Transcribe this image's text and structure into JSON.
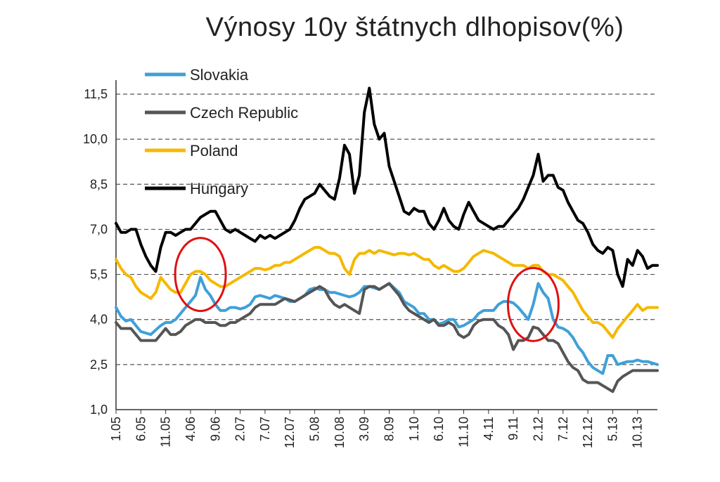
{
  "title": "Výnosy 10y štátnych dlhopisov(%)",
  "chart_data": {
    "type": "line",
    "title": "Výnosy 10y štátnych dlhopisov(%)",
    "ylim": [
      1.0,
      11.5
    ],
    "yticks": [
      "1,0",
      "2,5",
      "4,0",
      "5,5",
      "7,0",
      "8,5",
      "10,0",
      "11,5"
    ],
    "ytick_values": [
      1.0,
      2.5,
      4.0,
      5.5,
      7.0,
      8.5,
      10.0,
      11.5
    ],
    "grid": true,
    "legend": "top-left",
    "x_start": "1.05",
    "x_step_months": 1,
    "xticks": [
      {
        "label": "1.05",
        "index": 0
      },
      {
        "label": "6.05",
        "index": 5
      },
      {
        "label": "11.05",
        "index": 10
      },
      {
        "label": "4.06",
        "index": 15
      },
      {
        "label": "9.06",
        "index": 20
      },
      {
        "label": "2.07",
        "index": 25
      },
      {
        "label": "7.07",
        "index": 30
      },
      {
        "label": "12.07",
        "index": 35
      },
      {
        "label": "5.08",
        "index": 40
      },
      {
        "label": "10.08",
        "index": 45
      },
      {
        "label": "3.09",
        "index": 50
      },
      {
        "label": "8.09",
        "index": 55
      },
      {
        "label": "1.10",
        "index": 60
      },
      {
        "label": "6.10",
        "index": 65
      },
      {
        "label": "11.10",
        "index": 70
      },
      {
        "label": "4.11",
        "index": 75
      },
      {
        "label": "9.11",
        "index": 80
      },
      {
        "label": "2.12",
        "index": 85
      },
      {
        "label": "7.12",
        "index": 90
      },
      {
        "label": "12.12",
        "index": 95
      },
      {
        "label": "5.13",
        "index": 100
      },
      {
        "label": "10.13",
        "index": 105
      }
    ],
    "x_count": 110,
    "series": [
      {
        "name": "Slovakia",
        "color": "#3fa0d8",
        "values": [
          4.4,
          4.1,
          3.95,
          4.0,
          3.8,
          3.6,
          3.55,
          3.5,
          3.65,
          3.8,
          3.9,
          3.9,
          4.0,
          4.2,
          4.4,
          4.6,
          4.8,
          5.4,
          5.0,
          4.8,
          4.5,
          4.3,
          4.3,
          4.4,
          4.4,
          4.35,
          4.4,
          4.5,
          4.75,
          4.8,
          4.75,
          4.7,
          4.8,
          4.75,
          4.7,
          4.6,
          4.6,
          4.7,
          4.8,
          5.0,
          5.05,
          5.0,
          5.0,
          4.9,
          4.9,
          4.85,
          4.8,
          4.75,
          4.8,
          4.9,
          5.1,
          5.1,
          5.05,
          5.0,
          5.1,
          5.2,
          5.05,
          4.9,
          4.6,
          4.5,
          4.4,
          4.2,
          4.2,
          4.0,
          4.0,
          3.85,
          3.9,
          4.0,
          4.0,
          3.75,
          3.8,
          3.9,
          4.0,
          4.2,
          4.3,
          4.3,
          4.3,
          4.5,
          4.6,
          4.6,
          4.55,
          4.4,
          4.2,
          4.0,
          4.5,
          5.2,
          4.9,
          4.7,
          4.0,
          3.75,
          3.7,
          3.6,
          3.4,
          3.1,
          2.9,
          2.6,
          2.4,
          2.3,
          2.2,
          2.8,
          2.8,
          2.5,
          2.55,
          2.6,
          2.6,
          2.65,
          2.6,
          2.6,
          2.55,
          2.5
        ]
      },
      {
        "name": "Czech Republic",
        "color": "#555555",
        "values": [
          3.9,
          3.7,
          3.7,
          3.7,
          3.5,
          3.3,
          3.3,
          3.3,
          3.3,
          3.5,
          3.7,
          3.5,
          3.5,
          3.6,
          3.8,
          3.9,
          4.0,
          4.0,
          3.9,
          3.9,
          3.9,
          3.8,
          3.8,
          3.9,
          3.9,
          4.0,
          4.1,
          4.2,
          4.4,
          4.5,
          4.5,
          4.5,
          4.5,
          4.6,
          4.7,
          4.65,
          4.6,
          4.7,
          4.8,
          4.9,
          5.0,
          5.1,
          5.0,
          4.7,
          4.5,
          4.4,
          4.5,
          4.4,
          4.3,
          4.2,
          5.0,
          5.1,
          5.1,
          5.0,
          5.1,
          5.2,
          5.0,
          4.8,
          4.5,
          4.3,
          4.2,
          4.1,
          4.0,
          3.9,
          4.0,
          3.8,
          3.8,
          3.9,
          3.8,
          3.5,
          3.4,
          3.5,
          3.8,
          3.95,
          4.0,
          4.0,
          4.0,
          3.8,
          3.7,
          3.5,
          3.0,
          3.3,
          3.3,
          3.4,
          3.75,
          3.7,
          3.5,
          3.3,
          3.3,
          3.2,
          2.9,
          2.6,
          2.4,
          2.3,
          2.0,
          1.9,
          1.9,
          1.9,
          1.8,
          1.7,
          1.6,
          1.95,
          2.1,
          2.2,
          2.3,
          2.3,
          2.3,
          2.3,
          2.3,
          2.3
        ]
      },
      {
        "name": "Poland",
        "color": "#f5b800",
        "values": [
          6.0,
          5.7,
          5.5,
          5.4,
          5.1,
          4.9,
          4.8,
          4.7,
          4.9,
          5.4,
          5.2,
          5.0,
          4.9,
          4.9,
          5.2,
          5.5,
          5.6,
          5.6,
          5.5,
          5.3,
          5.2,
          5.1,
          5.1,
          5.2,
          5.3,
          5.4,
          5.5,
          5.6,
          5.7,
          5.7,
          5.65,
          5.7,
          5.8,
          5.8,
          5.9,
          5.9,
          6.0,
          6.1,
          6.2,
          6.3,
          6.4,
          6.4,
          6.3,
          6.2,
          6.2,
          6.1,
          5.7,
          5.5,
          6.0,
          6.2,
          6.2,
          6.3,
          6.2,
          6.3,
          6.25,
          6.2,
          6.15,
          6.2,
          6.2,
          6.15,
          6.2,
          6.1,
          6.0,
          6.0,
          5.8,
          5.7,
          5.8,
          5.7,
          5.6,
          5.6,
          5.7,
          5.9,
          6.1,
          6.2,
          6.3,
          6.25,
          6.2,
          6.1,
          6.0,
          5.9,
          5.8,
          5.8,
          5.8,
          5.7,
          5.8,
          5.8,
          5.6,
          5.5,
          5.5,
          5.4,
          5.3,
          5.1,
          4.9,
          4.6,
          4.3,
          4.1,
          3.9,
          3.9,
          3.8,
          3.6,
          3.4,
          3.7,
          3.9,
          4.1,
          4.3,
          4.5,
          4.3,
          4.4,
          4.4,
          4.4
        ]
      },
      {
        "name": "Hungary",
        "color": "#000000",
        "values": [
          7.2,
          6.9,
          6.9,
          7.0,
          7.0,
          6.5,
          6.1,
          5.8,
          5.6,
          6.4,
          6.9,
          6.9,
          6.8,
          6.9,
          7.0,
          7.0,
          7.2,
          7.4,
          7.5,
          7.6,
          7.6,
          7.3,
          7.0,
          6.9,
          7.0,
          6.9,
          6.8,
          6.7,
          6.6,
          6.8,
          6.7,
          6.8,
          6.7,
          6.8,
          6.9,
          7.0,
          7.3,
          7.7,
          8.0,
          8.1,
          8.2,
          8.5,
          8.3,
          8.1,
          8.0,
          8.7,
          9.8,
          9.5,
          8.2,
          8.8,
          10.9,
          11.7,
          10.5,
          10.0,
          10.2,
          9.1,
          8.6,
          8.1,
          7.6,
          7.5,
          7.7,
          7.6,
          7.6,
          7.2,
          7.0,
          7.3,
          7.7,
          7.3,
          7.1,
          7.0,
          7.5,
          7.9,
          7.6,
          7.3,
          7.2,
          7.1,
          7.0,
          7.1,
          7.1,
          7.3,
          7.5,
          7.7,
          8.0,
          8.4,
          8.8,
          9.5,
          8.6,
          8.8,
          8.8,
          8.4,
          8.3,
          7.9,
          7.6,
          7.3,
          7.2,
          6.9,
          6.5,
          6.3,
          6.2,
          6.4,
          6.3,
          5.5,
          5.1,
          6.0,
          5.8,
          6.3,
          6.1,
          5.7,
          5.8,
          5.8
        ]
      }
    ],
    "annotations": [
      {
        "shape": "ellipse",
        "color": "#e01010",
        "x_index": 17,
        "y_value": 5.5
      },
      {
        "shape": "ellipse",
        "color": "#e01010",
        "x_index": 84,
        "y_value": 4.5
      }
    ]
  }
}
